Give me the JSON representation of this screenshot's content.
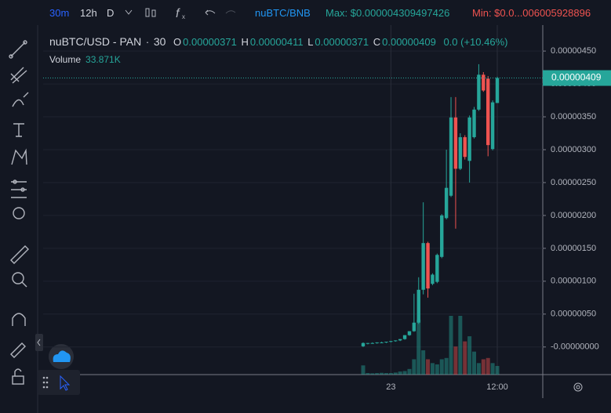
{
  "toolbar": {
    "intervals": [
      "30m",
      "12h",
      "D"
    ],
    "pair": "nuBTC/BNB",
    "max": "Max: $0.000004309497426",
    "min": "Min: $0.0...006005928896"
  },
  "chart_data": {
    "type": "candlestick",
    "title": "nuBTC/USD - PAN",
    "interval": "30",
    "header": {
      "open_label": "O",
      "open": "0.00000371",
      "high_label": "H",
      "high": "0.00000411",
      "low_label": "L",
      "low": "0.00000371",
      "close_label": "C",
      "close": "0.00000409",
      "change": "0.0 (+10.46%)"
    },
    "last_price_label": "0.00000409",
    "categories": [
      null,
      null,
      null,
      null,
      null,
      null,
      "23",
      null,
      null,
      null,
      null,
      null,
      null,
      null,
      null,
      null,
      null,
      null,
      null,
      null,
      null,
      null,
      null,
      null,
      null,
      null,
      null,
      null,
      null,
      "12:00"
    ],
    "series": [
      {
        "up_color": "#26a69a",
        "down_color": "#ef5350",
        "open": [
          1e-08,
          5e-08,
          6e-08,
          6e-08,
          7e-08,
          7e-08,
          8e-08,
          9e-08,
          1e-07,
          1.2e-07,
          1.8e-07,
          2.4e-07,
          3.7e-07,
          8.7e-07,
          1.58e-06,
          9.6e-07,
          9.9e-07,
          1.37e-06,
          1.96e-06,
          2.3e-06,
          3.49e-06,
          2.71e-06,
          3.19e-06,
          2.83e-06,
          3.19e-06,
          3.61e-06,
          4.14e-06,
          4.08e-06,
          3.01e-06,
          3.71e-06
        ],
        "high": [
          7e-08,
          6e-08,
          7e-08,
          7e-08,
          8e-08,
          8e-08,
          9e-08,
          1e-07,
          1.2e-07,
          1.8e-07,
          2.4e-07,
          8.1e-07,
          1.06e-06,
          2.2e-06,
          1.6e-06,
          1.12e-06,
          1.42e-06,
          2.02e-06,
          3e-06,
          3.8e-06,
          3.8e-06,
          3.25e-06,
          3.22e-06,
          3.52e-06,
          3.65e-06,
          4.3e-06,
          4.18e-06,
          4.12e-06,
          3.75e-06,
          4.11e-06
        ],
        "low": [
          0,
          4e-08,
          5e-08,
          5e-08,
          6e-08,
          6e-08,
          7e-08,
          8e-08,
          9e-08,
          1.1e-07,
          1.7e-07,
          2.3e-07,
          3.5e-07,
          8e-07,
          7.5e-07,
          9.4e-07,
          9.7e-07,
          1.35e-06,
          1.94e-06,
          2.28e-06,
          1.8e-06,
          2.69e-06,
          2.85e-06,
          2.5e-06,
          3.17e-06,
          3.59e-06,
          3.88e-06,
          2.9e-06,
          2.99e-06,
          3.71e-06
        ],
        "close": [
          6e-08,
          6e-08,
          6e-08,
          7e-08,
          7e-08,
          8e-08,
          9e-08,
          1e-07,
          1.2e-07,
          1.8e-07,
          2.4e-07,
          3.7e-07,
          8.7e-07,
          1.58e-06,
          8.9e-07,
          1.1e-06,
          1.4e-06,
          2e-06,
          2.42e-06,
          3.49e-06,
          2.71e-06,
          3.19e-06,
          2.89e-06,
          3.49e-06,
          3.61e-06,
          4.14e-06,
          3.9e-06,
          3.07e-06,
          3.72e-06,
          4.09e-06
        ]
      },
      {
        "name": "Volume",
        "values": [
          36000,
          6000,
          5000,
          6000,
          7000,
          6000,
          6000,
          8000,
          12000,
          14000,
          22000,
          60000,
          215000,
          95000,
          60000,
          45000,
          40000,
          60000,
          65000,
          230000,
          110000,
          230000,
          130000,
          150000,
          90000,
          45000,
          60000,
          65000,
          45000,
          33871
        ],
        "value_labels": [
          null,
          null,
          null,
          null,
          null,
          null,
          null,
          null,
          null,
          null,
          null,
          null,
          null,
          null,
          null,
          null,
          null,
          null,
          null,
          null,
          null,
          null,
          null,
          null,
          null,
          null,
          null,
          null,
          null,
          "33.871K"
        ]
      }
    ],
    "ylim": [
      -4.2e-07,
      4.74e-06
    ],
    "yticks": [
      {
        "value": 4.5e-06,
        "label": "0.00000450"
      },
      {
        "value": 4e-06,
        "label": "0.00000400"
      },
      {
        "value": 3.5e-06,
        "label": "0.00000350"
      },
      {
        "value": 3e-06,
        "label": "0.00000300"
      },
      {
        "value": 2.5e-06,
        "label": "0.00000250"
      },
      {
        "value": 2e-06,
        "label": "0.00000200"
      },
      {
        "value": 1.5e-06,
        "label": "0.00000150"
      },
      {
        "value": 1e-06,
        "label": "0.00000100"
      },
      {
        "value": 5e-07,
        "label": "0.00000050"
      },
      {
        "value": 0,
        "label": "-0.00000000"
      }
    ],
    "grid": true
  }
}
